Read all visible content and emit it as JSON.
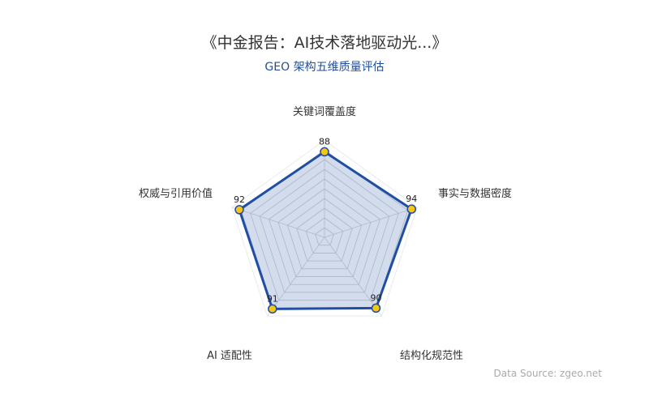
{
  "title": "《中金报告：AI技术落地驱动光...》",
  "subtitle": "GEO 架构五维质量评估",
  "source": "Data Source: zgeo.net",
  "chart_data": {
    "type": "radar",
    "indicators": [
      {
        "name": "关键词覆盖度",
        "max": 100
      },
      {
        "name": "事实与数据密度",
        "max": 100
      },
      {
        "name": "结构化规范性",
        "max": 100
      },
      {
        "name": "AI 适配性",
        "max": 100
      },
      {
        "name": "权威与引用价值",
        "max": 100
      }
    ],
    "values": [
      88,
      94,
      90,
      91,
      92
    ],
    "value_labels": [
      "88",
      "94",
      "90",
      "91",
      "92"
    ],
    "range": [
      0,
      100
    ],
    "split_levels": 10,
    "colors": {
      "line": "#1f4ea3",
      "area": "#1f4ea3",
      "point": "#f5c518",
      "grid": "#dddddd"
    }
  }
}
